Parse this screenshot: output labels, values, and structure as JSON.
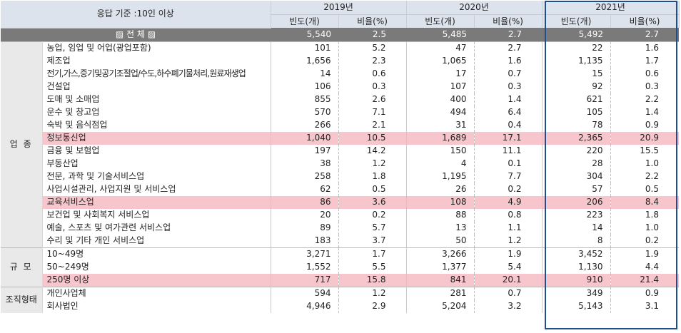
{
  "header": {
    "criteria": "응답 기준 :10인 이상",
    "years": [
      "2019년",
      "2020년",
      "2021년"
    ],
    "freq_label": "빈도(개)",
    "ratio_label": "비율(%)"
  },
  "total": {
    "label": "▨ 전 체 ▨",
    "v": [
      "5,540",
      "2.5",
      "5,485",
      "2.7",
      "5,492",
      "2.7"
    ]
  },
  "groups": [
    {
      "name": "업 종",
      "rows": [
        {
          "label": "농업, 임업 및 어업(광업포함)",
          "v": [
            "101",
            "5.2",
            "47",
            "2.7",
            "22",
            "1.6"
          ]
        },
        {
          "label": "제조업",
          "v": [
            "1,656",
            "2.3",
            "1,065",
            "1.6",
            "1,135",
            "1.7"
          ]
        },
        {
          "label": "전기,가스,증기및공기조절업/수도,하수폐기물처리,원료재생업",
          "v": [
            "14",
            "0.6",
            "17",
            "0.7",
            "15",
            "0.6"
          ]
        },
        {
          "label": "건설업",
          "v": [
            "106",
            "0.3",
            "107",
            "0.3",
            "92",
            "0.3"
          ]
        },
        {
          "label": "도매 및 소매업",
          "v": [
            "855",
            "2.6",
            "400",
            "1.4",
            "621",
            "2.2"
          ]
        },
        {
          "label": "운수 및 창고업",
          "v": [
            "570",
            "7.1",
            "494",
            "6.4",
            "105",
            "1.4"
          ]
        },
        {
          "label": "숙박 및 음식점업",
          "v": [
            "266",
            "2.1",
            "31",
            "0.4",
            "78",
            "0.9"
          ]
        },
        {
          "label": "정보통신업",
          "v": [
            "1,040",
            "10.5",
            "1,689",
            "17.1",
            "2,365",
            "20.9"
          ],
          "highlight": true
        },
        {
          "label": "금융 및 보험업",
          "v": [
            "197",
            "14.2",
            "150",
            "11.1",
            "220",
            "15.5"
          ]
        },
        {
          "label": "부동산업",
          "v": [
            "38",
            "1.2",
            "4",
            "0.1",
            "28",
            "1.0"
          ]
        },
        {
          "label": "전문, 과학 및 기술서비스업",
          "v": [
            "258",
            "1.8",
            "1,195",
            "7.7",
            "304",
            "2.2"
          ]
        },
        {
          "label": "사업시설관리, 사업지원 및 서비스업",
          "v": [
            "62",
            "0.5",
            "26",
            "0.2",
            "57",
            "0.5"
          ]
        },
        {
          "label": "교육서비스업",
          "v": [
            "86",
            "3.6",
            "108",
            "4.9",
            "206",
            "8.4"
          ],
          "highlight": true
        },
        {
          "label": "보건업 및 사회복지 서비스업",
          "v": [
            "20",
            "0.2",
            "88",
            "0.8",
            "223",
            "1.8"
          ]
        },
        {
          "label": "예술, 스포츠 및 여가관련 서비스업",
          "v": [
            "89",
            "5.7",
            "13",
            "1.1",
            "14",
            "1.0"
          ]
        },
        {
          "label": "수리 및 기타 개인 서비스업",
          "v": [
            "183",
            "3.7",
            "50",
            "1.2",
            "8",
            "0.2"
          ]
        }
      ]
    },
    {
      "name": "규 모",
      "rows": [
        {
          "label": "10~49명",
          "v": [
            "3,271",
            "1.7",
            "3,266",
            "1.9",
            "3,452",
            "1.9"
          ]
        },
        {
          "label": "50~249명",
          "v": [
            "1,552",
            "5.5",
            "1,377",
            "5.4",
            "1,130",
            "4.4"
          ]
        },
        {
          "label": "250명 이상",
          "v": [
            "717",
            "15.8",
            "841",
            "20.1",
            "910",
            "21.4"
          ],
          "highlight": true
        }
      ]
    },
    {
      "name": "조직형태",
      "rows": [
        {
          "label": "개인사업체",
          "v": [
            "594",
            "1.2",
            "281",
            "0.7",
            "349",
            "0.9"
          ]
        },
        {
          "label": "회사법인",
          "v": [
            "4,946",
            "2.9",
            "5,204",
            "3.2",
            "5,143",
            "3.1"
          ]
        }
      ]
    }
  ]
}
